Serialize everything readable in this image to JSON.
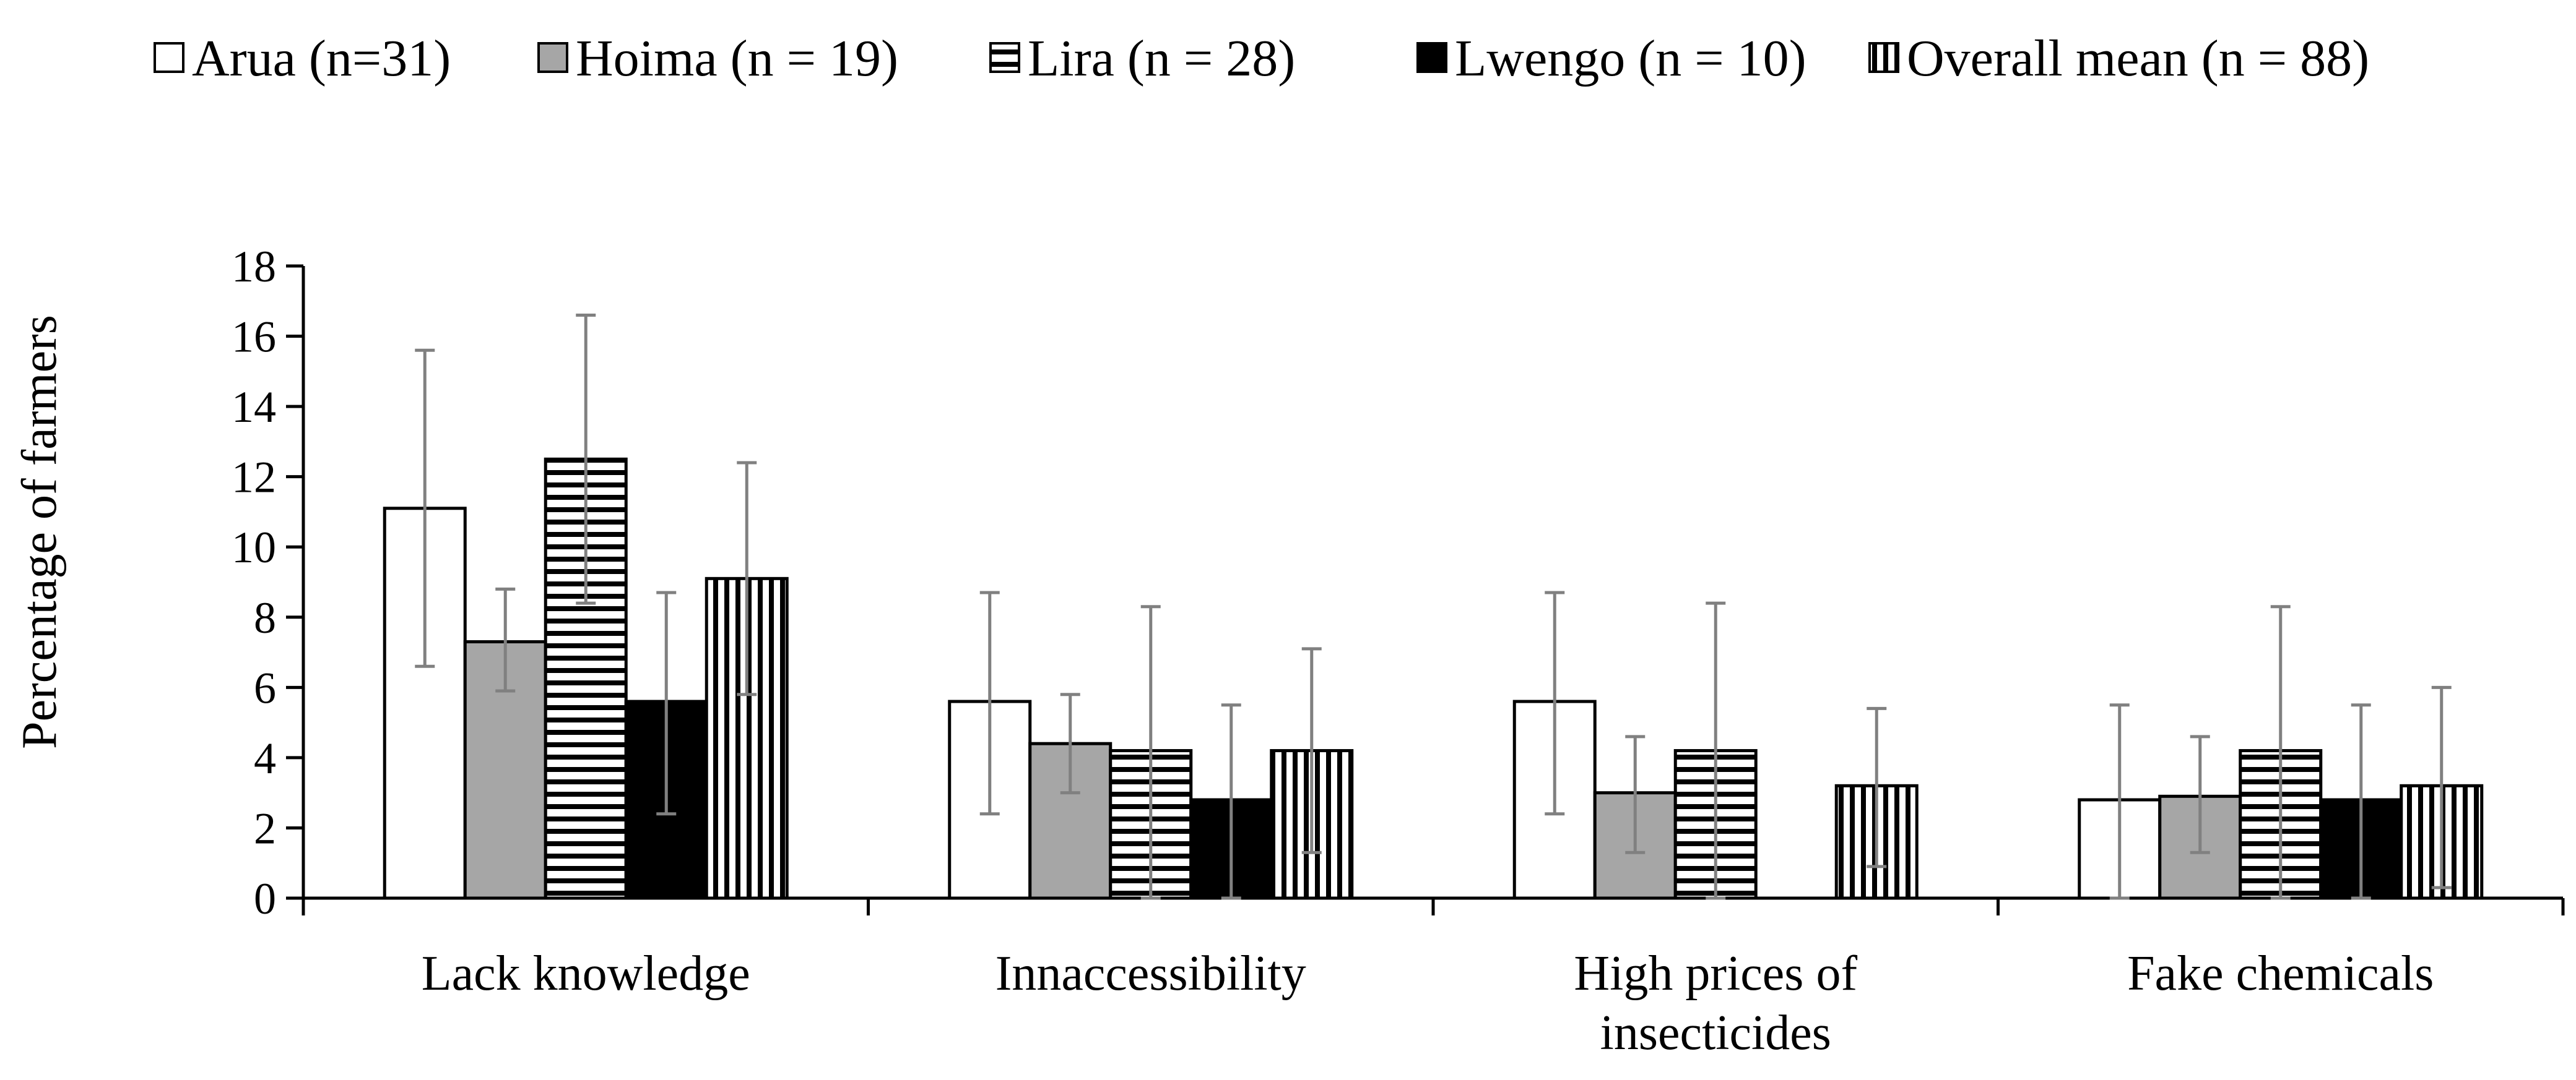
{
  "chart_data": {
    "type": "bar",
    "title": "",
    "xlabel": "",
    "ylabel": "Percentage of farmers",
    "ylim": [
      0,
      18
    ],
    "yticks": [
      0,
      2,
      4,
      6,
      8,
      10,
      12,
      14,
      16,
      18
    ],
    "grid": false,
    "legend_position": "top",
    "categories": [
      [
        "Lack knowledge"
      ],
      [
        "Innaccessibility"
      ],
      [
        "High prices of",
        "insecticides"
      ],
      [
        "Fake chemicals"
      ]
    ],
    "series": [
      {
        "name": "Arua (n=31)",
        "pattern": "white",
        "values": [
          11.1,
          5.6,
          5.6,
          2.8
        ],
        "err_low": [
          6.6,
          2.4,
          2.4,
          0.0
        ],
        "err_high": [
          15.6,
          8.7,
          8.7,
          5.5
        ]
      },
      {
        "name": "Hoima (n = 19)",
        "pattern": "gray",
        "values": [
          7.3,
          4.4,
          3.0,
          2.9
        ],
        "err_low": [
          5.9,
          3.0,
          1.3,
          1.3
        ],
        "err_high": [
          8.8,
          5.8,
          4.6,
          4.6
        ]
      },
      {
        "name": "Lira (n = 28)",
        "pattern": "hstripe",
        "values": [
          12.5,
          4.2,
          4.2,
          4.2
        ],
        "err_low": [
          8.4,
          0.0,
          0.0,
          0.0
        ],
        "err_high": [
          16.6,
          8.3,
          8.4,
          8.3
        ]
      },
      {
        "name": "Lwengo (n = 10)",
        "pattern": "black",
        "values": [
          5.6,
          2.8,
          null,
          2.8
        ],
        "err_low": [
          2.4,
          0.0,
          null,
          0.0
        ],
        "err_high": [
          8.7,
          5.5,
          null,
          5.5
        ]
      },
      {
        "name": "Overall mean (n = 88)",
        "pattern": "vstripe",
        "values": [
          9.1,
          4.2,
          3.2,
          3.2
        ],
        "err_low": [
          5.8,
          1.3,
          0.9,
          0.3
        ],
        "err_high": [
          12.4,
          7.1,
          5.4,
          6.0
        ]
      }
    ],
    "colors": {
      "axis": "#000000",
      "error_bar": "#808080",
      "gray_fill": "#a6a6a6",
      "black_fill": "#000000",
      "white_fill": "#ffffff"
    }
  }
}
